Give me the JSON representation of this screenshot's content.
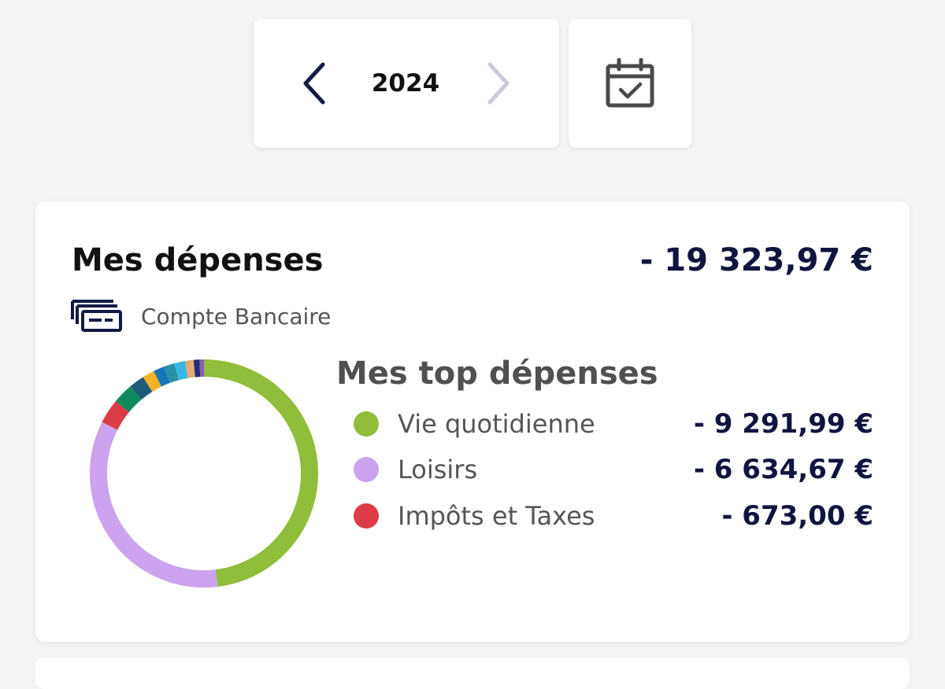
{
  "year_selector": {
    "year": "2024",
    "prev_icon": "chevron-left-icon",
    "next_icon": "chevron-right-icon"
  },
  "calendar_button": {
    "icon": "calendar-check-icon"
  },
  "expenses_card": {
    "title": "Mes dépenses",
    "total": "- 19 323,97 €",
    "account_icon": "bank-cards-icon",
    "account_label": "Compte Bancaire",
    "top_title": "Mes top dépenses",
    "top_items": [
      {
        "label": "Vie quotidienne",
        "amount": "- 9 291,99 €",
        "color": "#90bd3a"
      },
      {
        "label": "Loisirs",
        "amount": "- 6 634,67 €",
        "color": "#cba3ee"
      },
      {
        "label": "Impôts et Taxes",
        "amount": "- 673,00 €",
        "color": "#dc3b48"
      }
    ],
    "chart_data": {
      "type": "pie",
      "categories": [
        "Vie quotidienne",
        "Loisirs",
        "Impôts et Taxes",
        "",
        "",
        "",
        "",
        "",
        "",
        "",
        "",
        ""
      ],
      "values": [
        9291.99,
        6634.67,
        673.0,
        560,
        430,
        330,
        300,
        290,
        300,
        230,
        160,
        120
      ],
      "colors": [
        "#90bd3a",
        "#cba3ee",
        "#dc3b48",
        "#0e8a5c",
        "#1e5b78",
        "#f4b320",
        "#1677b8",
        "#2b8fa8",
        "#38b8e0",
        "#e8a878",
        "#1d2f6f",
        "#8a5bbf"
      ]
    }
  }
}
